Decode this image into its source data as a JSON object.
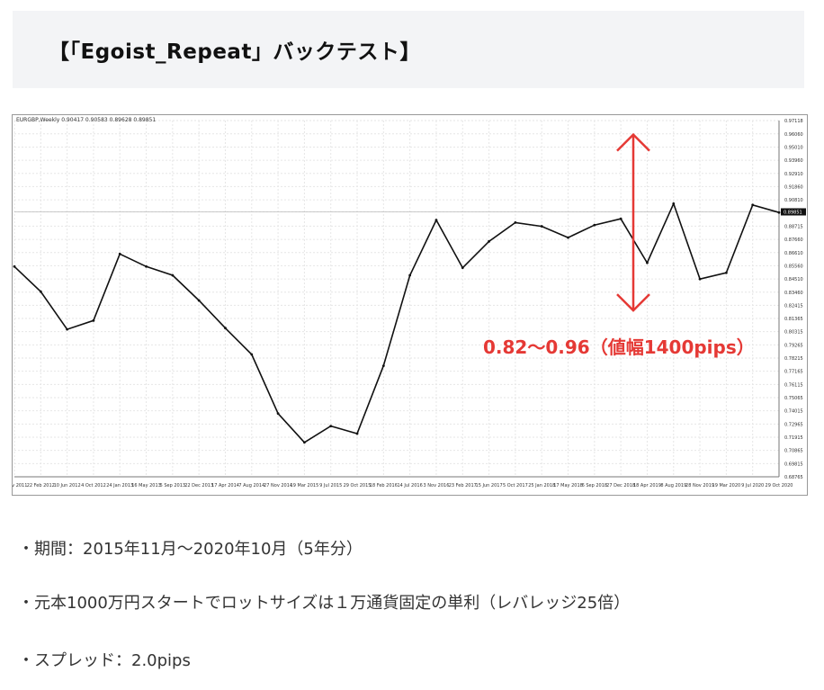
{
  "title": "【「Egoist_Repeat」バックテスト】",
  "chart_header": "EURGBP,Weekly  0.90417 0.90583 0.89628 0.89851",
  "annotation": "0.82〜0.96（値幅1400pips）",
  "bullets": [
    "・期間：2015年11月〜2020年10月（5年分）",
    "・元本1000万円スタートでロットサイズは１万通貨固定の単利（レバレッジ25倍）",
    "・スプレッド：2.0pips"
  ],
  "colors": {
    "accent": "#e53935",
    "grid": "#e6e6e6",
    "line": "#111111"
  },
  "chart_data": {
    "type": "line",
    "title": "",
    "xlabel": "",
    "ylabel": "",
    "current_price": "0.89851",
    "ylim": [
      0.68765,
      0.97118
    ],
    "y_ticks": [
      "0.97118",
      "0.96060",
      "0.95010",
      "0.93960",
      "0.92910",
      "0.91860",
      "0.90810",
      "0.89851",
      "0.88715",
      "0.87660",
      "0.86610",
      "0.85560",
      "0.84510",
      "0.83460",
      "0.82415",
      "0.81365",
      "0.80315",
      "0.79265",
      "0.78215",
      "0.77165",
      "0.76115",
      "0.75065",
      "0.74015",
      "0.72965",
      "0.71915",
      "0.70865",
      "0.69815",
      "0.68765"
    ],
    "x_ticks": [
      "3 Nov 2011",
      "22 Feb 2012",
      "10 Jun 2012",
      "4 Oct 2012",
      "24 Jan 2013",
      "16 May 2013",
      "5 Sep 2013",
      "22 Dec 2013",
      "17 Apr 2014",
      "7 Aug 2014",
      "27 Nov 2014",
      "19 Mar 2015",
      "9 Jul 2015",
      "29 Oct 2015",
      "18 Feb 2016",
      "14 Jul 2016",
      "3 Nov 2016",
      "23 Feb 2017",
      "15 Jun 2017",
      "5 Oct 2017",
      "25 Jan 2018",
      "17 May 2018",
      "6 Sep 2018",
      "27 Dec 2018",
      "18 Apr 2019",
      "8 Aug 2019",
      "28 Nov 2019",
      "19 Mar 2020",
      "9 Jul 2020",
      "29 Oct 2020"
    ],
    "series": [
      {
        "x": [
          "3 Nov 2011",
          "22 Feb 2012",
          "10 Jun 2012",
          "4 Oct 2012",
          "24 Jan 2013",
          "16 May 2013",
          "5 Sep 2013",
          "22 Dec 2013",
          "17 Apr 2014",
          "7 Aug 2014",
          "27 Nov 2014",
          "19 Mar 2015",
          "9 Jul 2015",
          "29 Oct 2015",
          "18 Feb 2016",
          "14 Jul 2016",
          "3 Nov 2016",
          "23 Feb 2017",
          "15 Jun 2017",
          "5 Oct 2017",
          "25 Jan 2018",
          "17 May 2018",
          "6 Sep 2018",
          "27 Dec 2018",
          "18 Apr 2019",
          "8 Aug 2019",
          "28 Nov 2019",
          "19 Mar 2020",
          "9 Jul 2020",
          "29 Oct 2020"
        ],
        "values": [
          0.855,
          0.835,
          0.805,
          0.812,
          0.865,
          0.855,
          0.848,
          0.828,
          0.806,
          0.785,
          0.738,
          0.715,
          0.728,
          0.722,
          0.776,
          0.848,
          0.892,
          0.854,
          0.875,
          0.89,
          0.887,
          0.878,
          0.888,
          0.893,
          0.858,
          0.905,
          0.845,
          0.85,
          0.904,
          0.898
        ]
      }
    ],
    "annotation_range": {
      "low": 0.82,
      "high": 0.96
    }
  }
}
